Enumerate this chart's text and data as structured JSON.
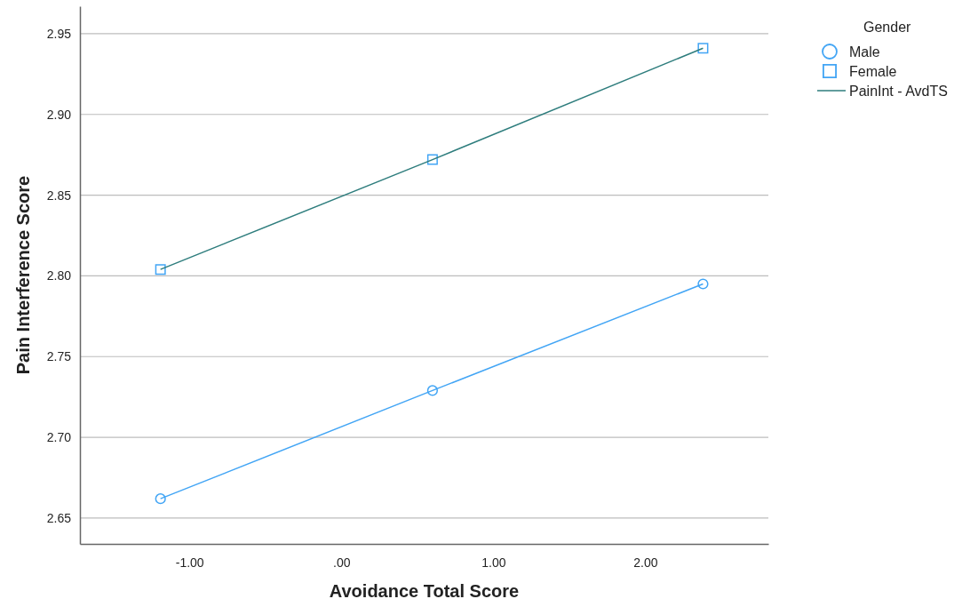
{
  "chart_data": {
    "type": "scatter",
    "xlabel": "Avoidance Total Score",
    "ylabel": "Pain Interference Score",
    "legend_title": "Gender",
    "xlim": [
      -1.72,
      2.81
    ],
    "xticks": [
      {
        "value": -1,
        "label": "-1.00"
      },
      {
        "value": 0,
        "label": ".00"
      },
      {
        "value": 1,
        "label": "1.00"
      },
      {
        "value": 2,
        "label": "2.00"
      }
    ],
    "ylim": [
      2.634,
      2.967
    ],
    "yticks": [
      {
        "value": 2.65,
        "label": "2.65"
      },
      {
        "value": 2.7,
        "label": "2.70"
      },
      {
        "value": 2.75,
        "label": "2.75"
      },
      {
        "value": 2.8,
        "label": "2.80"
      },
      {
        "value": 2.85,
        "label": "2.85"
      },
      {
        "value": 2.9,
        "label": "2.90"
      },
      {
        "value": 2.95,
        "label": "2.95"
      }
    ],
    "grid": "y",
    "legend": "top right",
    "series": [
      {
        "name": "Male",
        "marker": "circle",
        "color": "#42a5f5",
        "x": [
          -1.19,
          0.6,
          2.38
        ],
        "values": [
          2.662,
          2.729,
          2.795
        ]
      },
      {
        "name": "Female",
        "marker": "square",
        "color": "#42a5f5",
        "x": [
          -1.19,
          0.6,
          2.38
        ],
        "values": [
          2.804,
          2.872,
          2.941
        ]
      },
      {
        "type": "line",
        "marker": "none",
        "color": "#42a5f5",
        "x": [
          -1.19,
          0.6,
          2.38
        ],
        "values": [
          2.662,
          2.729,
          2.795
        ]
      },
      {
        "name": "PainInt - AvdTS",
        "type": "line",
        "marker": "none",
        "color": "#2e7d7d",
        "x": [
          -1.19,
          0.6,
          2.38
        ],
        "values": [
          2.804,
          2.872,
          2.941
        ]
      }
    ]
  }
}
